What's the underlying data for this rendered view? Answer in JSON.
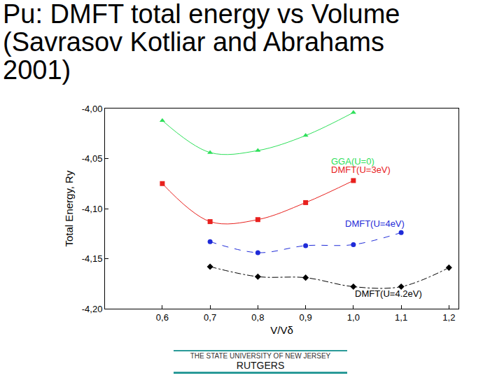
{
  "chart_data": {
    "type": "line",
    "title": "Pu: DMFT total energy vs Volume (Savrasov Kotliar and Abrahams 2001)",
    "x_label": "V/Vδ",
    "y_label": "Total Energy, Ry",
    "x": [
      0.6,
      0.7,
      0.8,
      0.9,
      1.0,
      1.1,
      1.2
    ],
    "series": [
      {
        "color": "#2ee05a",
        "marker": "triangle-up",
        "line_style": "solid",
        "values": [
          -4.012,
          -4.044,
          -4.042,
          -4.027,
          -4.004,
          null,
          null
        ]
      },
      {
        "color": "#e8211e",
        "marker": "square",
        "line_style": "solid",
        "values": [
          -4.075,
          -4.113,
          -4.111,
          -4.094,
          -4.072,
          null,
          null
        ]
      },
      {
        "color": "#1f2bd8",
        "marker": "circle",
        "line_style": "dash",
        "values": [
          null,
          -4.133,
          -4.144,
          -4.137,
          -4.136,
          -4.124,
          null
        ]
      },
      {
        "color": "#000000",
        "marker": "diamond",
        "line_style": "dashdot",
        "values": [
          null,
          -4.158,
          -4.168,
          -4.169,
          -4.178,
          -4.178,
          -4.159
        ]
      }
    ],
    "annotations": [
      {
        "text": "GGA(U=0)",
        "x": 0.95,
        "y": -4.053,
        "color": "#2ee05a"
      },
      {
        "text": "DMFT(U=3eV)",
        "x": 0.95,
        "y": -4.061,
        "color": "#e8211e"
      },
      {
        "text": "DMFT(U=4eV)",
        "x": 0.98,
        "y": -4.115,
        "color": "#1f2bd8"
      },
      {
        "text": "DMFT(U=4.2eV)",
        "x": 1.0,
        "y": -4.185,
        "color": "#000000"
      }
    ],
    "xlim": [
      0.48,
      1.22
    ],
    "ylim": [
      -4.2,
      -4.0
    ],
    "xticks": [
      {
        "value": 0.6,
        "label": "0,6"
      },
      {
        "value": 0.7,
        "label": "0,7"
      },
      {
        "value": 0.8,
        "label": "0,8"
      },
      {
        "value": 0.9,
        "label": "0,9"
      },
      {
        "value": 1.0,
        "label": "1,0"
      },
      {
        "value": 1.1,
        "label": "1,1"
      },
      {
        "value": 1.2,
        "label": "1,2"
      }
    ],
    "yticks": [
      {
        "value": -4.0,
        "label": "-4,00"
      },
      {
        "value": -4.05,
        "label": "-4,05"
      },
      {
        "value": -4.1,
        "label": "-4,10"
      },
      {
        "value": -4.15,
        "label": "-4,15"
      },
      {
        "value": -4.2,
        "label": "-4,20"
      }
    ],
    "grid": false
  },
  "footer": [
    "THE STATE UNIVERSITY OF NEW JERSEY",
    "RUTGERS"
  ]
}
